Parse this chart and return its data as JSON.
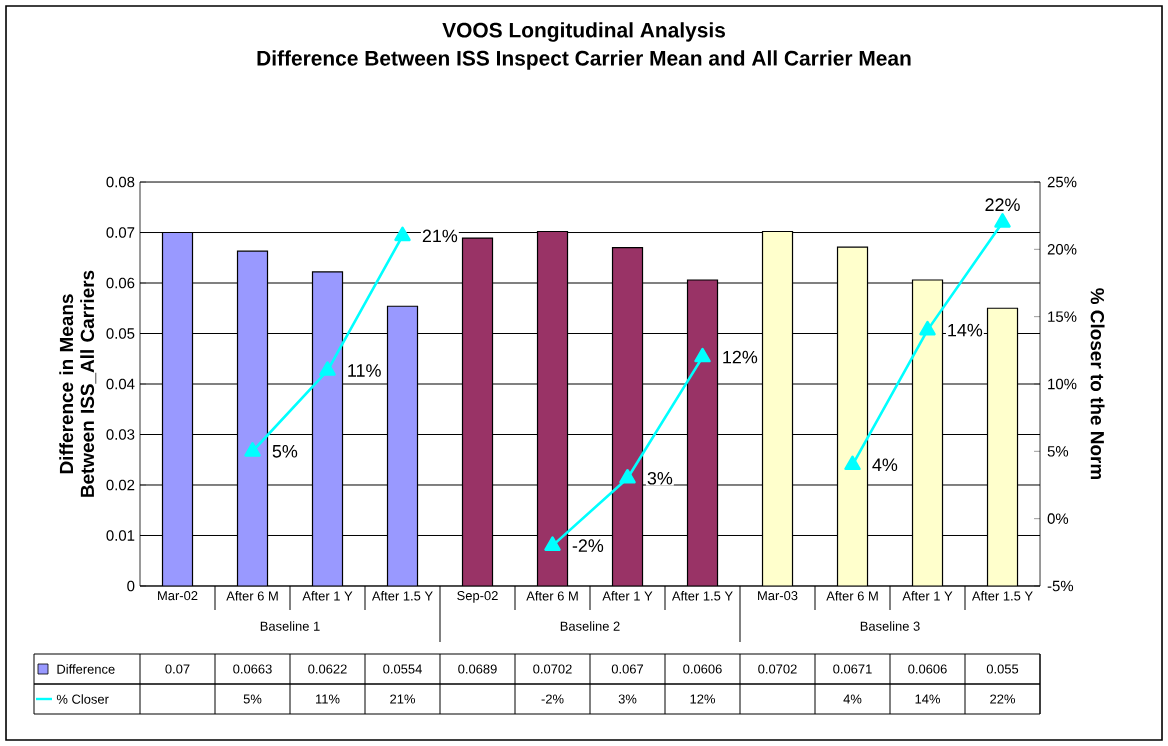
{
  "chart_data": {
    "type": "bar",
    "title": "VOOS Longitudinal Analysis",
    "subtitle": "Difference Between ISS Inspect Carrier Mean and All Carrier Mean",
    "ylabel": "Difference in Means Between ISS_All Carriers",
    "y2label": "% Closer to the Norm",
    "categories": [
      "Mar-02",
      "After 6 M",
      "After 1 Y",
      "After 1.5 Y",
      "Sep-02",
      "After 6 M",
      "After 1 Y",
      "After 1.5 Y",
      "Mar-03",
      "After 6 M",
      "After 1 Y",
      "After 1.5 Y"
    ],
    "annotations": [
      "Baseline 1",
      "Baseline 2",
      "Baseline 3"
    ],
    "series": [
      {
        "name": "Difference",
        "colors": [
          "#9999ff",
          "#9999ff",
          "#9999ff",
          "#9999ff",
          "#993366",
          "#993366",
          "#993366",
          "#993366",
          "#ffffcc",
          "#ffffcc",
          "#ffffcc",
          "#ffffcc"
        ],
        "values": [
          0.07,
          0.0663,
          0.0622,
          0.0554,
          0.0689,
          0.0702,
          0.067,
          0.0606,
          0.0702,
          0.0671,
          0.0606,
          0.055
        ]
      },
      {
        "name": "% Closer",
        "type": "line",
        "axis": "y2",
        "color": "#00ffff",
        "marker": "triangle",
        "values": [
          null,
          5,
          11,
          21,
          null,
          -2,
          3,
          12,
          null,
          4,
          14,
          22
        ],
        "value_labels": [
          null,
          "5%",
          "11%",
          "21%",
          null,
          "-2%",
          "3%",
          "12%",
          null,
          "4%",
          "14%",
          "22%"
        ]
      }
    ],
    "data_labels": true,
    "ylim": [
      0,
      0.08
    ],
    "yticks": [
      0,
      0.01,
      0.02,
      0.03,
      0.04,
      0.05,
      0.06,
      0.07,
      0.08
    ],
    "y2lim": [
      -5,
      25
    ],
    "y2ticks": [
      {
        "value": -5,
        "label": "-5%"
      },
      {
        "value": 0,
        "label": "0%"
      },
      {
        "value": 5,
        "label": "5%"
      },
      {
        "value": 10,
        "label": "10%"
      },
      {
        "value": 15,
        "label": "15%"
      },
      {
        "value": 20,
        "label": "20%"
      },
      {
        "value": 25,
        "label": "25%"
      }
    ],
    "grid": "y",
    "legend": "bottom left"
  }
}
